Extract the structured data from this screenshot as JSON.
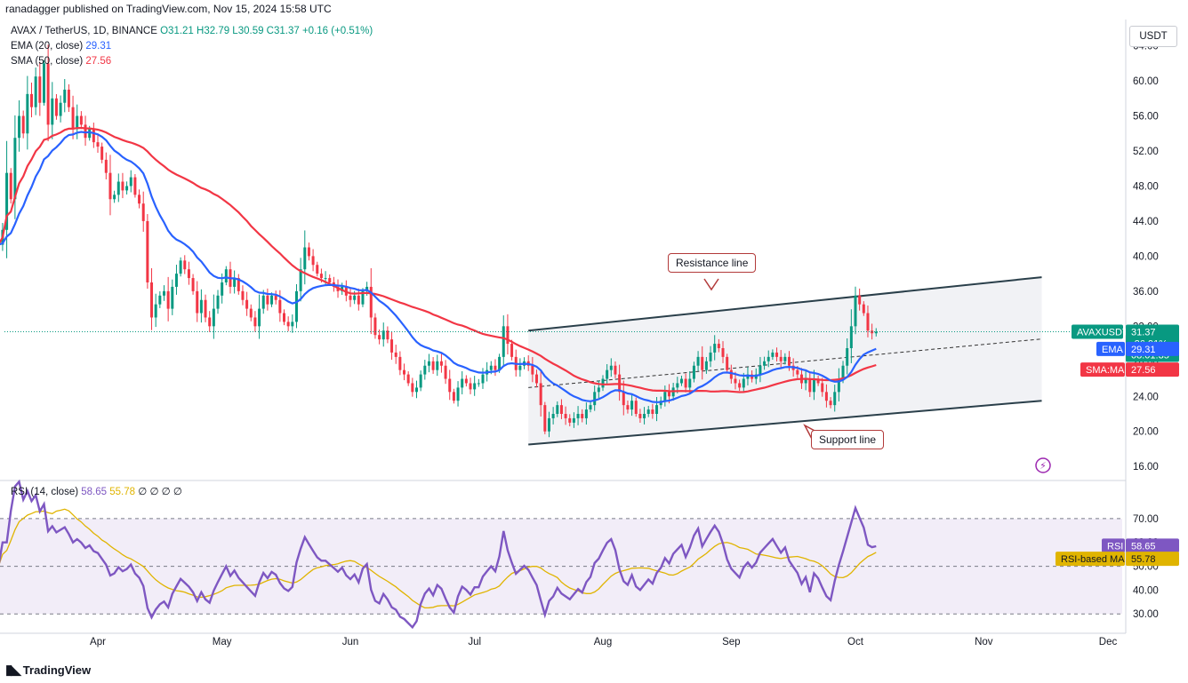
{
  "publisher": "ranadagger published on TradingView.com, Nov 15, 2024 15:58 UTC",
  "legend": {
    "symbol": "AVAX / TetherUS, 1D, BINANCE",
    "ohlc": "O31.21 H32.79 L30.59 C31.37 +0.16 (+0.51%)",
    "ema_label": "EMA (20, close)",
    "ema_value": "29.31",
    "sma_label": "SMA (50, close)",
    "sma_value": "27.56",
    "rsi_label": "RSI (14, close)",
    "rsi_value": "58.65",
    "rsi_ma_value": "55.78",
    "rsi_extra": "∅ ∅ ∅ ∅"
  },
  "currency": "USDT",
  "annotations": {
    "resistance": "Resistance line",
    "support": "Support line"
  },
  "price_tags": {
    "symbol_label": "AVAXUSDT",
    "price": "31.37",
    "change": "-26.91%",
    "countdown": "08:01:35",
    "ema_label": "EMA",
    "ema": "29.31",
    "sma_label": "SMA:MA",
    "sma": "27.56",
    "rsi_label": "RSI",
    "rsi": "58.65",
    "rsi_ma_label": "RSI-based MA",
    "rsi_ma": "55.78"
  },
  "branding": "TradingView",
  "colors": {
    "up": "#089981",
    "down": "#f23645",
    "ema": "#2962ff",
    "sma": "#f23645",
    "rsi": "#7e57c2",
    "rsi_ma": "#e0b400",
    "channel_fill": "#eef0f3",
    "rsi_band": "#ede7f6"
  },
  "chart_data": [
    {
      "type": "candlestick",
      "title": "AVAX / TetherUS, 1D, BINANCE",
      "x_ticks": [
        "Apr",
        "May",
        "Jun",
        "Jul",
        "Aug",
        "Sep",
        "Oct",
        "Nov",
        "Dec"
      ],
      "y_ticks": [
        16,
        20,
        24,
        28,
        32,
        36,
        40,
        44,
        48,
        52,
        56,
        60,
        64
      ],
      "y_tick_labels": [
        "16.00",
        "20.00",
        "24.00",
        "28.00",
        "32.00",
        "36.00",
        "40.00",
        "44.00",
        "48.00",
        "52.00",
        "56.00",
        "60.00",
        "64.00"
      ],
      "ylim": [
        14.5,
        67
      ],
      "start_date": "2024-03-08",
      "closes": [
        41.3,
        43.0,
        49.5,
        46.5,
        53.5,
        56.0,
        54.0,
        58.5,
        57.0,
        60.5,
        57.5,
        62.0,
        55.0,
        58.0,
        56.0,
        57.5,
        59.0,
        57.0,
        54.5,
        56.0,
        55.0,
        53.5,
        54.5,
        53.0,
        52.5,
        51.0,
        49.5,
        46.5,
        47.0,
        48.5,
        47.5,
        48.0,
        49.0,
        47.0,
        46.0,
        44.0,
        37.0,
        33.0,
        34.5,
        35.5,
        36.0,
        34.0,
        36.5,
        38.0,
        39.5,
        38.5,
        37.5,
        36.0,
        33.5,
        35.0,
        33.0,
        32.0,
        34.0,
        35.5,
        37.0,
        38.5,
        36.5,
        37.5,
        36.0,
        35.0,
        34.0,
        33.0,
        32.0,
        34.0,
        35.5,
        34.5,
        35.5,
        35.0,
        33.5,
        32.5,
        32.0,
        32.5,
        36.0,
        38.5,
        41.0,
        40.0,
        39.0,
        38.0,
        37.5,
        37.5,
        37.0,
        36.5,
        36.0,
        36.5,
        35.5,
        35.0,
        35.5,
        34.5,
        36.0,
        36.5,
        33.0,
        31.0,
        30.5,
        31.5,
        30.5,
        29.0,
        28.5,
        27.0,
        26.5,
        25.5,
        24.5,
        25.0,
        26.5,
        27.5,
        28.0,
        27.0,
        28.0,
        27.5,
        26.0,
        24.5,
        23.5,
        25.0,
        26.0,
        25.5,
        24.8,
        25.5,
        25.5,
        26.5,
        27.0,
        27.5,
        27.0,
        28.5,
        32.0,
        30.0,
        28.5,
        27.0,
        27.5,
        28.0,
        27.5,
        26.5,
        25.5,
        23.0,
        20.0,
        21.5,
        22.0,
        23.0,
        22.0,
        21.5,
        21.0,
        21.5,
        22.0,
        21.5,
        22.5,
        23.0,
        24.5,
        25.0,
        26.0,
        27.0,
        27.5,
        26.5,
        24.5,
        23.0,
        22.5,
        23.5,
        22.0,
        21.5,
        22.0,
        22.5,
        22.0,
        23.0,
        23.5,
        24.5,
        24.0,
        25.0,
        25.5,
        26.0,
        25.0,
        26.0,
        27.5,
        28.5,
        27.0,
        28.0,
        29.0,
        30.0,
        29.5,
        28.5,
        27.0,
        26.0,
        25.5,
        25.0,
        26.0,
        26.5,
        26.0,
        26.5,
        27.5,
        28.0,
        28.5,
        29.0,
        28.5,
        28.0,
        28.5,
        27.5,
        27.0,
        26.5,
        25.5,
        26.0,
        24.5,
        26.0,
        25.5,
        24.5,
        23.5,
        23.0,
        24.5,
        26.0,
        27.5,
        29.5,
        32.0,
        35.5,
        34.5,
        33.5,
        31.5,
        31.2,
        31.37
      ],
      "series": [
        {
          "name": "EMA (20, close)",
          "last": 29.31
        },
        {
          "name": "SMA (50, close)",
          "last": 27.56
        }
      ],
      "channel": {
        "resistance": {
          "start_date": "2024-07-14",
          "start": 31.5,
          "end_date": "2024-11-15",
          "end": 37.6
        },
        "support": {
          "start_date": "2024-07-14",
          "start": 18.5,
          "end_date": "2024-11-15",
          "end": 23.5
        }
      }
    },
    {
      "type": "line",
      "title": "RSI (14, close)",
      "y_ticks": [
        30,
        40,
        50,
        60,
        70
      ],
      "y_tick_labels": [
        "30.00",
        "40.00",
        "50.00",
        "60.00",
        "70.00"
      ],
      "ylim": [
        23,
        86
      ],
      "levels": [
        70,
        50,
        30
      ],
      "series": [
        {
          "name": "RSI",
          "last": 58.65
        },
        {
          "name": "RSI-based MA",
          "last": 55.78
        }
      ]
    }
  ]
}
